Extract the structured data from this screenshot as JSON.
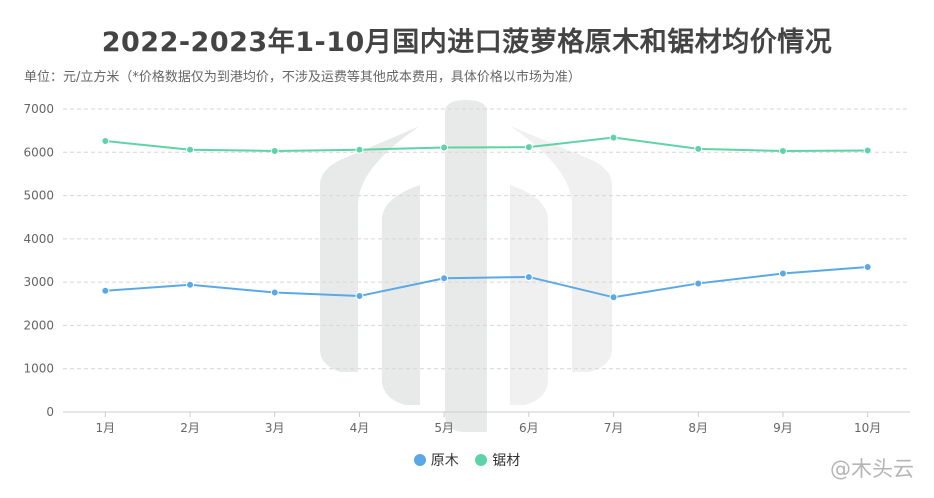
{
  "title": "2022-2023年1-10月国内进口菠萝格原木和锯材均价情况",
  "subtitle": "单位：元/立方米（*价格数据仅为到港均价，不涉及运费等其他成本费用，具体价格以市场为准）",
  "watermark": "@木头云",
  "colors": {
    "原木": "#5aa9e6",
    "锯材": "#5fd3a8"
  },
  "chart_data": {
    "type": "line",
    "categories": [
      "1月",
      "2月",
      "3月",
      "4月",
      "5月",
      "6月",
      "7月",
      "8月",
      "9月",
      "10月"
    ],
    "series": [
      {
        "name": "原木",
        "values": [
          2800,
          2940,
          2760,
          2680,
          3090,
          3120,
          2650,
          2970,
          3200,
          3350
        ]
      },
      {
        "name": "锯材",
        "values": [
          6260,
          6060,
          6030,
          6060,
          6110,
          6120,
          6340,
          6080,
          6030,
          6040
        ]
      }
    ],
    "ylim": [
      0,
      7000
    ],
    "yticks": [
      0,
      1000,
      2000,
      3000,
      4000,
      5000,
      6000,
      7000
    ],
    "grid": true,
    "legend": "bottom-center"
  }
}
